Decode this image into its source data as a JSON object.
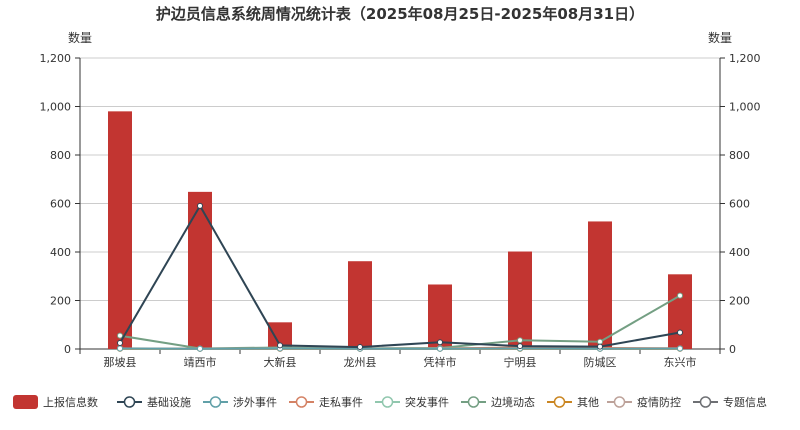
{
  "chart_data": {
    "type": "bar",
    "title": "护边员信息系统周情况统计表（2025年08月25日-2025年08月31日）",
    "ylabel_left": "数量",
    "ylabel_right": "数量",
    "ylim": [
      0,
      1200
    ],
    "y_ticks": [
      0,
      200,
      400,
      600,
      800,
      1000,
      1200
    ],
    "y_tick_labels": [
      "0",
      "200",
      "400",
      "600",
      "800",
      "1,000",
      "1,200"
    ],
    "y_right_tick_labels": [
      "0",
      "200",
      "400",
      "600",
      "800",
      "1,000",
      "1,200"
    ],
    "grid": true,
    "legend_position": "bottom",
    "categories": [
      "那坡县",
      "靖西市",
      "大新县",
      "龙州县",
      "凭祥市",
      "宁明县",
      "防城区",
      "东兴市"
    ],
    "series": [
      {
        "name": "上报信息数",
        "kind": "bar",
        "color": "#c23531",
        "values": [
          980,
          648,
          110,
          362,
          266,
          402,
          526,
          308
        ]
      },
      {
        "name": "基础设施",
        "kind": "line",
        "color": "#2f4554",
        "values": [
          25,
          590,
          15,
          8,
          28,
          12,
          10,
          68
        ]
      },
      {
        "name": "涉外事件",
        "kind": "line",
        "color": "#61a0a8",
        "values": [
          2,
          1,
          2,
          1,
          1,
          2,
          1,
          2
        ]
      },
      {
        "name": "走私事件",
        "kind": "line",
        "color": "#d48265",
        "values": [
          3,
          1,
          2,
          1,
          2,
          6,
          4,
          3
        ]
      },
      {
        "name": "突发事件",
        "kind": "line",
        "color": "#91c7ae",
        "values": [
          2,
          1,
          3,
          2,
          3,
          3,
          2,
          2
        ]
      },
      {
        "name": "边境动态",
        "kind": "line",
        "color": "#749f83",
        "values": [
          55,
          2,
          6,
          3,
          4,
          36,
          30,
          220
        ]
      },
      {
        "name": "其他",
        "kind": "line",
        "color": "#ca8622",
        "values": [
          1,
          1,
          1,
          1,
          1,
          1,
          1,
          1
        ]
      },
      {
        "name": "疫情防控",
        "kind": "line",
        "color": "#bda29a",
        "values": [
          1,
          1,
          1,
          1,
          1,
          1,
          1,
          1
        ]
      },
      {
        "name": "专题信息",
        "kind": "line",
        "color": "#6e7074",
        "values": [
          1,
          1,
          1,
          1,
          1,
          1,
          1,
          1
        ]
      }
    ]
  }
}
